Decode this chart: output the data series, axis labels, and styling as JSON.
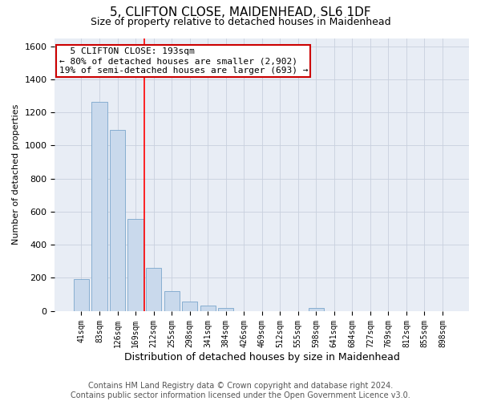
{
  "title1": "5, CLIFTON CLOSE, MAIDENHEAD, SL6 1DF",
  "title2": "Size of property relative to detached houses in Maidenhead",
  "xlabel": "Distribution of detached houses by size in Maidenhead",
  "ylabel": "Number of detached properties",
  "categories": [
    "41sqm",
    "83sqm",
    "126sqm",
    "169sqm",
    "212sqm",
    "255sqm",
    "298sqm",
    "341sqm",
    "384sqm",
    "426sqm",
    "469sqm",
    "512sqm",
    "555sqm",
    "598sqm",
    "641sqm",
    "684sqm",
    "727sqm",
    "769sqm",
    "812sqm",
    "855sqm",
    "898sqm"
  ],
  "values": [
    190,
    1265,
    1095,
    555,
    260,
    120,
    55,
    30,
    18,
    0,
    0,
    0,
    0,
    18,
    0,
    0,
    0,
    0,
    0,
    0,
    0
  ],
  "bar_color": "#c9d9ec",
  "bar_edge_color": "#7aa6cc",
  "vline_color": "red",
  "annotation_text": "  5 CLIFTON CLOSE: 193sqm\n← 80% of detached houses are smaller (2,902)\n19% of semi-detached houses are larger (693) →",
  "annotation_box_color": "white",
  "annotation_box_edge": "#cc0000",
  "ylim": [
    0,
    1650
  ],
  "yticks": [
    0,
    200,
    400,
    600,
    800,
    1000,
    1200,
    1400,
    1600
  ],
  "grid_color": "#c8d0de",
  "background_color": "#e8edf5",
  "footer1": "Contains HM Land Registry data © Crown copyright and database right 2024.",
  "footer2": "Contains public sector information licensed under the Open Government Licence v3.0.",
  "title_fontsize": 11,
  "subtitle_fontsize": 9,
  "annotation_fontsize": 8,
  "footer_fontsize": 7,
  "ylabel_fontsize": 8,
  "xlabel_fontsize": 9
}
